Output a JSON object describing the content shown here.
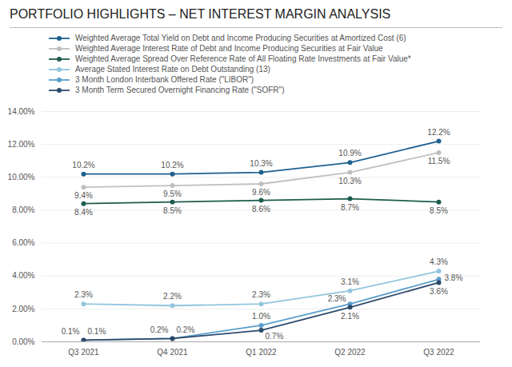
{
  "chart_data": {
    "type": "line",
    "title": "PORTFOLIO HIGHLIGHTS – NET INTEREST MARGIN ANALYSIS",
    "categories": [
      "Q3 2021",
      "Q4 2021",
      "Q1 2022",
      "Q2 2022",
      "Q3 2022"
    ],
    "series": [
      {
        "name": "Weighted Average Total Yield on Debt and Income Producing Securities at Amortized Cost (6)",
        "color": "#1f6091",
        "marker": "circle",
        "values": [
          10.2,
          10.2,
          10.3,
          10.9,
          12.2
        ],
        "value_labels": [
          "10.2%",
          "10.2%",
          "10.3%",
          "10.9%",
          "12.2%"
        ]
      },
      {
        "name": "Weighted Average Interest Rate of Debt and Income Producing Securities at Fair Value",
        "color": "#c0c0c0",
        "marker": "circle",
        "values": [
          9.4,
          9.5,
          9.6,
          10.3,
          11.5
        ],
        "value_labels": [
          "9.4%",
          "9.5%",
          "9.6%",
          "10.3%",
          "11.5%"
        ]
      },
      {
        "name": "Weighted Average Spread Over Reference Rate of All Floating Rate Investments at Fair Value*",
        "color": "#1d5c4e",
        "marker": "circle",
        "values": [
          8.4,
          8.5,
          8.6,
          8.7,
          8.5
        ],
        "value_labels": [
          "8.4%",
          "8.5%",
          "8.6%",
          "8.7%",
          "8.5%"
        ]
      },
      {
        "name": "Average Stated Interest Rate on Debt Outstanding (13)",
        "color": "#92c5de",
        "marker": "circle",
        "values": [
          2.3,
          2.2,
          2.3,
          3.1,
          4.3
        ],
        "value_labels": [
          "2.3%",
          "2.2%",
          "2.3%",
          "3.1%",
          "4.3%"
        ]
      },
      {
        "name": "3 Month London Interbank Offered Rate (\"LIBOR\")",
        "color": "#5b9ec9",
        "marker": "circle",
        "values": [
          0.1,
          0.2,
          1.0,
          2.3,
          3.8
        ],
        "value_labels": [
          "0.1%",
          "0.2%",
          "1.0%",
          "2.3%",
          "3.8%"
        ]
      },
      {
        "name": "3 Month Term Secured Overnight Financing Rate (\"SOFR\")",
        "color": "#2d4a6b",
        "marker": "circle",
        "values": [
          0.1,
          0.2,
          0.7,
          2.1,
          3.6
        ],
        "value_labels": [
          "0.1%",
          "0.2%",
          "0.7%",
          "2.1%",
          "3.6%"
        ]
      }
    ],
    "ylim": [
      0,
      14
    ],
    "yticks": [
      {
        "value": 0,
        "label": "0.00%"
      },
      {
        "value": 2,
        "label": "2.00%"
      },
      {
        "value": 4,
        "label": "4.00%"
      },
      {
        "value": 6,
        "label": "6.00%"
      },
      {
        "value": 8,
        "label": "8.00%"
      },
      {
        "value": 10,
        "label": "10.00%"
      },
      {
        "value": 12,
        "label": "12.00%"
      },
      {
        "value": 14,
        "label": "14.00%"
      }
    ],
    "grid": true,
    "data_labels": true,
    "legend": "top"
  }
}
